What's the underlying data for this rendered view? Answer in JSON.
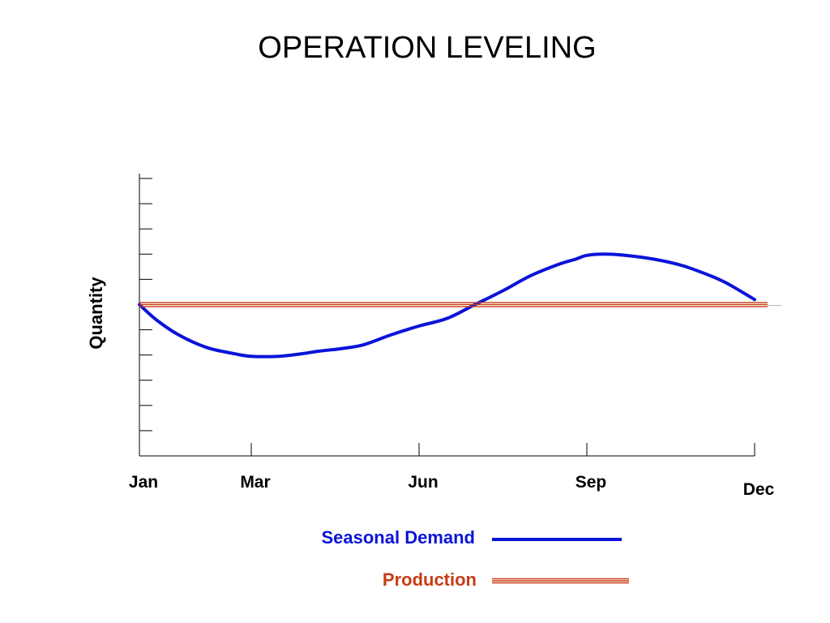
{
  "chart_data": {
    "type": "line",
    "title": "OPERATION LEVELING",
    "ylabel": "Quantity",
    "xlabel": "",
    "x_tick_labels": [
      "Jan",
      "Mar",
      "Jun",
      "Sep",
      "Dec"
    ],
    "x_tick_months": [
      1,
      3,
      6,
      9,
      12
    ],
    "xlim": [
      1,
      12
    ],
    "ylim": [
      -6,
      5
    ],
    "y_ticks": [
      -5,
      -4,
      -3,
      -2,
      -1,
      0,
      1,
      2,
      3,
      4,
      5
    ],
    "grid": false,
    "legend_position": "bottom-center",
    "series": [
      {
        "name": "Seasonal Demand",
        "color": "#0a14d8",
        "style": "solid",
        "x": [
          1.0,
          1.3,
          1.7,
          2.2,
          2.7,
          3.0,
          3.5,
          3.9,
          4.2,
          4.6,
          5.0,
          5.5,
          6.0,
          6.5,
          7.0,
          7.5,
          8.0,
          8.5,
          8.8,
          9.0,
          9.3,
          9.7,
          10.2,
          10.7,
          11.2,
          11.5,
          12.0
        ],
        "y": [
          0.0,
          -0.6,
          -1.2,
          -1.7,
          -1.95,
          -2.05,
          -2.05,
          -1.95,
          -1.85,
          -1.75,
          -1.6,
          -1.2,
          -0.85,
          -0.55,
          0.0,
          0.55,
          1.15,
          1.6,
          1.8,
          1.95,
          2.0,
          1.95,
          1.8,
          1.55,
          1.15,
          0.85,
          0.2
        ]
      },
      {
        "name": "Production",
        "color": "#c83c14",
        "style": "double",
        "x": [
          1,
          12
        ],
        "y": [
          0,
          0
        ]
      }
    ]
  }
}
